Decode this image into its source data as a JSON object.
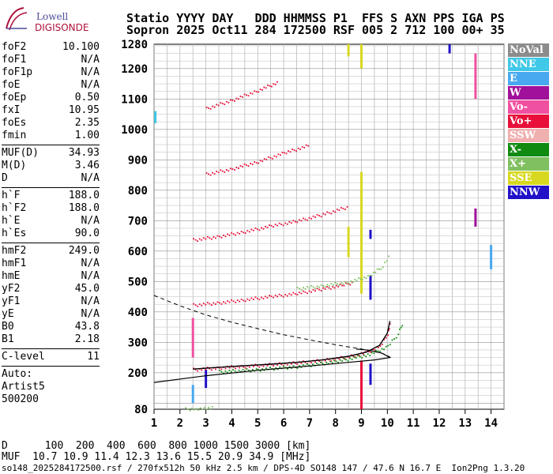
{
  "logo": {
    "line1": "Lowell",
    "line2": "DIGISONDE"
  },
  "header": {
    "row1": "Statio YYYY DAY   DDD HHMMSS P1  FFS S AXN PPS IGA PS",
    "row2": "Sopron 2025 Oct11 284 172500 RSF 005 2 712 100 00+ 35"
  },
  "params": [
    {
      "group": [
        {
          "k": "foF2",
          "v": "10.100"
        },
        {
          "k": "foF1",
          "v": "N/A"
        },
        {
          "k": "foF1p",
          "v": "N/A"
        },
        {
          "k": "foE",
          "v": "N/A"
        },
        {
          "k": "foEp",
          "v": "0.50"
        },
        {
          "k": "fxI",
          "v": "10.95"
        },
        {
          "k": "foEs",
          "v": "2.35"
        },
        {
          "k": "fmin",
          "v": "1.00"
        }
      ]
    },
    {
      "group": [
        {
          "k": "MUF(D)",
          "v": "34.93"
        },
        {
          "k": "M(D)",
          "v": "3.46"
        },
        {
          "k": "D",
          "v": "N/A"
        }
      ]
    },
    {
      "group": [
        {
          "k": "h`F",
          "v": "188.0"
        },
        {
          "k": "h`F2",
          "v": "188.0"
        },
        {
          "k": "h`E",
          "v": "N/A"
        },
        {
          "k": "h`Es",
          "v": "90.0"
        }
      ]
    },
    {
      "group": [
        {
          "k": "hmF2",
          "v": "249.0"
        },
        {
          "k": "hmF1",
          "v": "N/A"
        },
        {
          "k": "hmE",
          "v": "N/A"
        },
        {
          "k": "yF2",
          "v": "45.0"
        },
        {
          "k": "yF1",
          "v": "N/A"
        },
        {
          "k": "yE",
          "v": "N/A"
        },
        {
          "k": "B0",
          "v": "43.8"
        },
        {
          "k": "B1",
          "v": "2.18"
        }
      ]
    },
    {
      "group": [
        {
          "k": "C-level",
          "v": "11"
        }
      ]
    }
  ],
  "auto": {
    "line1": "Auto:",
    "line2": "Artist5",
    "line3": "500200"
  },
  "legend": [
    {
      "label": "NoVal",
      "color": "#8c8c8c"
    },
    {
      "label": "NNE",
      "color": "#3fc8e8"
    },
    {
      "label": "E",
      "color": "#48a8f0"
    },
    {
      "label": "W",
      "color": "#a0109a"
    },
    {
      "label": "Vo-",
      "color": "#f050a0"
    },
    {
      "label": "Vo+",
      "color": "#e8103a"
    },
    {
      "label": "SSW",
      "color": "#f0b0b0"
    },
    {
      "label": "X-",
      "color": "#108a10"
    },
    {
      "label": "X+",
      "color": "#80c060"
    },
    {
      "label": "SSE",
      "color": "#d8d820"
    },
    {
      "label": "NNW",
      "color": "#2010c8"
    }
  ],
  "footer": {
    "row1": "D      100  200  400  600  800 1000 1500 3000 [km]",
    "row2": "MUF  10.7 10.9 11.4 12.3 13.6 15.5 20.9 34.9 [MHz]",
    "row3": "so148_2025284172500.rsf / 270fx512h 50 kHz 2.5 km / DPS-4D SO148 147 / 47.6 N 16.7 E  Ion2Png 1.3.20"
  },
  "chart_data": {
    "type": "scatter",
    "xlim": [
      1,
      14.5
    ],
    "ylim": [
      80,
      1280
    ],
    "x_ticks": [
      1,
      2,
      3,
      4,
      5,
      6,
      7,
      8,
      9,
      10,
      11,
      12,
      13,
      14
    ],
    "y_ticks": [
      200,
      300,
      400,
      500,
      600,
      700,
      800,
      900,
      1000,
      1100,
      1200
    ],
    "y_tick_labels_extra": [
      {
        "v": 80,
        "label": "80"
      },
      {
        "v": 1280,
        "label": "1280"
      }
    ],
    "grid": true,
    "traces": [
      {
        "name": "F2 O-trace",
        "color": "#e8103a",
        "points": [
          [
            2.5,
            212
          ],
          [
            3.5,
            218
          ],
          [
            4.5,
            223
          ],
          [
            5.5,
            228
          ],
          [
            6.5,
            234
          ],
          [
            7.5,
            242
          ],
          [
            8.5,
            254
          ],
          [
            9.2,
            268
          ],
          [
            9.7,
            290
          ],
          [
            10.0,
            330
          ],
          [
            10.1,
            370
          ]
        ]
      },
      {
        "name": "F2 X-trace",
        "color": "#108a10",
        "points": [
          [
            3.5,
            205
          ],
          [
            5,
            212
          ],
          [
            6.5,
            222
          ],
          [
            8,
            238
          ],
          [
            9.3,
            262
          ],
          [
            10.0,
            288
          ],
          [
            10.4,
            330
          ],
          [
            10.6,
            372
          ]
        ]
      },
      {
        "name": "2nd hop O",
        "color": "#e8103a",
        "points": [
          [
            2.5,
            424
          ],
          [
            3.5,
            432
          ],
          [
            4.5,
            442
          ],
          [
            5.5,
            452
          ],
          [
            6.5,
            462
          ],
          [
            7.5,
            478
          ],
          [
            8.3,
            490
          ],
          [
            8.7,
            500
          ]
        ]
      },
      {
        "name": "2nd hop X",
        "color": "#80c060",
        "points": [
          [
            6.5,
            478
          ],
          [
            7.5,
            488
          ],
          [
            8.5,
            500
          ],
          [
            9.3,
            520
          ],
          [
            9.8,
            552
          ],
          [
            10.1,
            590
          ]
        ]
      },
      {
        "name": "3rd hop O",
        "color": "#e8103a",
        "points": [
          [
            2.5,
            638
          ],
          [
            3.5,
            650
          ],
          [
            4.5,
            666
          ],
          [
            5.5,
            684
          ],
          [
            6.5,
            700
          ],
          [
            7.5,
            722
          ],
          [
            8.5,
            748
          ]
        ]
      },
      {
        "name": "4th hop O",
        "color": "#e8103a",
        "points": [
          [
            3.0,
            854
          ],
          [
            4.0,
            872
          ],
          [
            5.0,
            896
          ],
          [
            6.0,
            924
          ],
          [
            7.0,
            950
          ]
        ]
      },
      {
        "name": "5th hop O",
        "color": "#e8103a",
        "points": [
          [
            3.0,
            1070
          ],
          [
            4.0,
            1098
          ],
          [
            5.0,
            1130
          ],
          [
            5.8,
            1158
          ]
        ]
      },
      {
        "name": "Es trace",
        "color": "#80c060",
        "points": [
          [
            2.2,
            82
          ],
          [
            2.6,
            84
          ],
          [
            3.0,
            86
          ],
          [
            3.3,
            88
          ]
        ]
      }
    ],
    "profile_solid": [
      [
        1.0,
        168
      ],
      [
        3.0,
        190
      ],
      [
        5.0,
        208
      ],
      [
        7.0,
        222
      ],
      [
        8.5,
        234
      ],
      [
        9.5,
        242
      ],
      [
        10.1,
        250
      ],
      [
        9.8,
        264
      ],
      [
        9.3,
        274
      ],
      [
        8.8,
        278
      ]
    ],
    "profile_dashed": [
      [
        1.0,
        454
      ],
      [
        2.0,
        420
      ],
      [
        3.0,
        390
      ],
      [
        4.0,
        366
      ],
      [
        5.0,
        345
      ],
      [
        6.0,
        325
      ],
      [
        7.0,
        308
      ],
      [
        8.0,
        292
      ],
      [
        9.0,
        278
      ],
      [
        9.8,
        264
      ],
      [
        10.1,
        252
      ]
    ],
    "vertical_bars": [
      {
        "x": 9.0,
        "y0": 460,
        "y1": 860,
        "color": "#d8d820"
      },
      {
        "x": 8.5,
        "y0": 580,
        "y1": 680,
        "color": "#d8d820"
      },
      {
        "x": 9.0,
        "y0": 80,
        "y1": 240,
        "color": "#e8103a"
      },
      {
        "x": 9.35,
        "y0": 640,
        "y1": 670,
        "color": "#2010c8"
      },
      {
        "x": 9.35,
        "y0": 440,
        "y1": 520,
        "color": "#2010c8"
      },
      {
        "x": 9.35,
        "y0": 160,
        "y1": 230,
        "color": "#2010c8"
      },
      {
        "x": 13.4,
        "y0": 680,
        "y1": 740,
        "color": "#a0109a"
      },
      {
        "x": 13.4,
        "y0": 1100,
        "y1": 1250,
        "color": "#f050a0"
      },
      {
        "x": 2.5,
        "y0": 250,
        "y1": 380,
        "color": "#f050a0"
      },
      {
        "x": 2.5,
        "y0": 100,
        "y1": 160,
        "color": "#48a8f0"
      },
      {
        "x": 1.05,
        "y0": 1020,
        "y1": 1060,
        "color": "#3fc8e8"
      },
      {
        "x": 14.0,
        "y0": 540,
        "y1": 620,
        "color": "#48a8f0"
      },
      {
        "x": 8.5,
        "y0": 1240,
        "y1": 1280,
        "color": "#d8d820"
      },
      {
        "x": 9.0,
        "y0": 1200,
        "y1": 1280,
        "color": "#d8d820"
      },
      {
        "x": 12.4,
        "y0": 1250,
        "y1": 1280,
        "color": "#2010c8"
      },
      {
        "x": 3.0,
        "y0": 150,
        "y1": 210,
        "color": "#2010c8"
      }
    ]
  }
}
